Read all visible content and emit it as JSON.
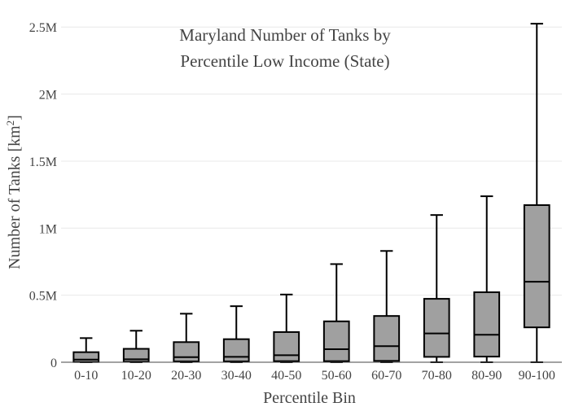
{
  "chart_data": {
    "type": "box",
    "title_lines": [
      "Maryland Number of Tanks by",
      "Percentile Low Income (State)"
    ],
    "xlabel": "Percentile Bin",
    "ylabel": "Number of Tanks  [km",
    "ylabel_superscript": "2",
    "ylabel_suffix": "]",
    "ylim": [
      0,
      2550000
    ],
    "yticks": [
      {
        "value": 0,
        "label": "0"
      },
      {
        "value": 500000,
        "label": "0.5M"
      },
      {
        "value": 1000000,
        "label": "1M"
      },
      {
        "value": 1500000,
        "label": "1.5M"
      },
      {
        "value": 2000000,
        "label": "2M"
      },
      {
        "value": 2500000,
        "label": "2.5M"
      }
    ],
    "grid": true,
    "box_color": "#a0a0a0",
    "categories": [
      "0-10",
      "10-20",
      "20-30",
      "30-40",
      "40-50",
      "50-60",
      "60-70",
      "70-80",
      "80-90",
      "90-100"
    ],
    "boxes": [
      {
        "min": 0,
        "q1": 2000,
        "median": 20000,
        "q3": 75000,
        "max": 180000
      },
      {
        "min": 0,
        "q1": 4000,
        "median": 22000,
        "q3": 100000,
        "max": 235000
      },
      {
        "min": 0,
        "q1": 6000,
        "median": 38000,
        "q3": 150000,
        "max": 362000
      },
      {
        "min": 0,
        "q1": 6000,
        "median": 40000,
        "q3": 172000,
        "max": 418000
      },
      {
        "min": 0,
        "q1": 8000,
        "median": 52000,
        "q3": 225000,
        "max": 505000
      },
      {
        "min": 0,
        "q1": 8000,
        "median": 97000,
        "q3": 305000,
        "max": 732000
      },
      {
        "min": 0,
        "q1": 10000,
        "median": 120000,
        "q3": 345000,
        "max": 830000
      },
      {
        "min": 0,
        "q1": 40000,
        "median": 215000,
        "q3": 473000,
        "max": 1098000
      },
      {
        "min": 0,
        "q1": 42000,
        "median": 205000,
        "q3": 522000,
        "max": 1238000
      },
      {
        "min": 0,
        "q1": 260000,
        "median": 600000,
        "q3": 1172000,
        "max": 2525000
      }
    ]
  }
}
